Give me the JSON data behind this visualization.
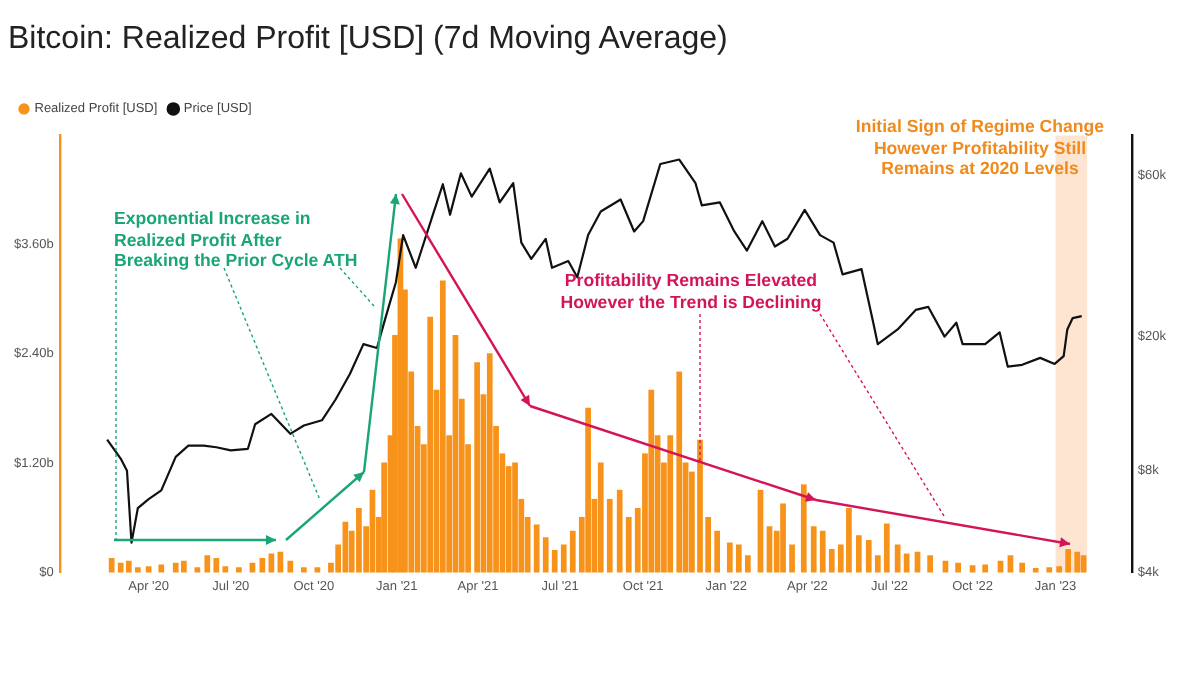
{
  "chart_data": {
    "type": "bar",
    "title": "Bitcoin: Realized Profit [USD] (7d Moving Average)",
    "series": [
      {
        "name": "Realized Profit [USD]",
        "color": "#f7931a",
        "x": [
          "2020-02-20",
          "2020-03-01",
          "2020-03-10",
          "2020-03-20",
          "2020-04-01",
          "2020-04-15",
          "2020-05-01",
          "2020-05-10",
          "2020-05-25",
          "2020-06-05",
          "2020-06-15",
          "2020-06-25",
          "2020-07-10",
          "2020-07-25",
          "2020-08-05",
          "2020-08-15",
          "2020-08-25",
          "2020-09-05",
          "2020-09-20",
          "2020-10-05",
          "2020-10-20",
          "2020-10-28",
          "2020-11-05",
          "2020-11-12",
          "2020-11-20",
          "2020-11-28",
          "2020-12-05",
          "2020-12-12",
          "2020-12-18",
          "2020-12-25",
          "2020-12-30",
          "2021-01-05",
          "2021-01-10",
          "2021-01-17",
          "2021-01-24",
          "2021-01-31",
          "2021-02-07",
          "2021-02-14",
          "2021-02-21",
          "2021-02-28",
          "2021-03-07",
          "2021-03-14",
          "2021-03-21",
          "2021-03-31",
          "2021-04-07",
          "2021-04-14",
          "2021-04-21",
          "2021-04-28",
          "2021-05-05",
          "2021-05-12",
          "2021-05-19",
          "2021-05-26",
          "2021-06-05",
          "2021-06-15",
          "2021-06-25",
          "2021-07-05",
          "2021-07-15",
          "2021-07-25",
          "2021-08-01",
          "2021-08-08",
          "2021-08-15",
          "2021-08-25",
          "2021-09-05",
          "2021-09-15",
          "2021-09-25",
          "2021-10-03",
          "2021-10-10",
          "2021-10-17",
          "2021-10-24",
          "2021-10-31",
          "2021-11-10",
          "2021-11-17",
          "2021-11-24",
          "2021-12-03",
          "2021-12-12",
          "2021-12-22",
          "2022-01-05",
          "2022-01-15",
          "2022-01-25",
          "2022-02-08",
          "2022-02-18",
          "2022-02-26",
          "2022-03-05",
          "2022-03-15",
          "2022-03-28",
          "2022-04-08",
          "2022-04-18",
          "2022-04-28",
          "2022-05-08",
          "2022-05-17",
          "2022-05-28",
          "2022-06-08",
          "2022-06-18",
          "2022-06-28",
          "2022-07-10",
          "2022-07-20",
          "2022-08-01",
          "2022-08-15",
          "2022-09-01",
          "2022-09-15",
          "2022-10-01",
          "2022-10-15",
          "2022-11-01",
          "2022-11-12",
          "2022-11-25",
          "2022-12-10",
          "2022-12-25",
          "2023-01-05",
          "2023-01-15",
          "2023-01-25",
          "2023-02-01"
        ],
        "values": [
          0.15,
          0.1,
          0.12,
          0.05,
          0.06,
          0.08,
          0.1,
          0.12,
          0.05,
          0.18,
          0.15,
          0.06,
          0.05,
          0.1,
          0.15,
          0.2,
          0.22,
          0.12,
          0.05,
          0.05,
          0.1,
          0.3,
          0.55,
          0.45,
          0.7,
          0.5,
          0.9,
          0.6,
          1.2,
          1.5,
          2.6,
          3.66,
          3.1,
          2.2,
          1.6,
          1.4,
          2.8,
          2.0,
          3.2,
          1.5,
          2.6,
          1.9,
          1.4,
          2.3,
          1.95,
          2.4,
          1.6,
          1.3,
          1.16,
          1.2,
          0.8,
          0.6,
          0.52,
          0.38,
          0.24,
          0.3,
          0.45,
          0.6,
          1.8,
          0.8,
          1.2,
          0.8,
          0.9,
          0.6,
          0.7,
          1.3,
          2.0,
          1.5,
          1.2,
          1.5,
          2.2,
          1.2,
          1.1,
          1.45,
          0.6,
          0.45,
          0.32,
          0.3,
          0.18,
          0.9,
          0.5,
          0.45,
          0.75,
          0.3,
          0.96,
          0.5,
          0.45,
          0.25,
          0.3,
          0.7,
          0.4,
          0.35,
          0.18,
          0.53,
          0.3,
          0.2,
          0.22,
          0.18,
          0.12,
          0.1,
          0.07,
          0.08,
          0.12,
          0.18,
          0.1,
          0.04,
          0.05,
          0.06,
          0.25,
          0.22,
          0.18
        ]
      },
      {
        "name": "Price [USD]",
        "type": "line",
        "axis": "y2",
        "color": "#111111",
        "x": [
          "2020-02-15",
          "2020-03-01",
          "2020-03-08",
          "2020-03-13",
          "2020-03-20",
          "2020-04-01",
          "2020-04-15",
          "2020-05-01",
          "2020-05-15",
          "2020-06-01",
          "2020-06-15",
          "2020-07-01",
          "2020-07-20",
          "2020-07-28",
          "2020-08-15",
          "2020-09-05",
          "2020-09-20",
          "2020-10-10",
          "2020-10-25",
          "2020-11-10",
          "2020-11-25",
          "2020-12-10",
          "2020-12-20",
          "2020-12-31",
          "2021-01-08",
          "2021-01-22",
          "2021-02-10",
          "2021-02-21",
          "2021-03-01",
          "2021-03-13",
          "2021-03-25",
          "2021-04-14",
          "2021-04-25",
          "2021-05-10",
          "2021-05-19",
          "2021-05-30",
          "2021-06-15",
          "2021-06-22",
          "2021-07-10",
          "2021-07-20",
          "2021-08-01",
          "2021-08-15",
          "2021-09-06",
          "2021-09-21",
          "2021-10-01",
          "2021-10-20",
          "2021-11-10",
          "2021-11-28",
          "2021-12-05",
          "2021-12-25",
          "2022-01-10",
          "2022-01-24",
          "2022-02-10",
          "2022-02-24",
          "2022-03-10",
          "2022-03-29",
          "2022-04-15",
          "2022-04-30",
          "2022-05-10",
          "2022-05-31",
          "2022-06-13",
          "2022-06-18",
          "2022-07-10",
          "2022-07-30",
          "2022-08-13",
          "2022-08-31",
          "2022-09-13",
          "2022-09-20",
          "2022-10-15",
          "2022-10-31",
          "2022-11-09",
          "2022-11-25",
          "2022-12-15",
          "2022-12-31",
          "2023-01-10",
          "2023-01-14",
          "2023-01-20",
          "2023-01-30"
        ],
        "values": [
          9900,
          8700,
          8000,
          4900,
          6200,
          6600,
          7000,
          8800,
          9500,
          9500,
          9400,
          9200,
          9300,
          11000,
          11800,
          10300,
          10900,
          11300,
          13000,
          15500,
          19000,
          18500,
          23000,
          29000,
          40000,
          32000,
          46000,
          56600,
          46000,
          61000,
          52000,
          63000,
          50000,
          57000,
          38000,
          34000,
          39000,
          32000,
          33500,
          30000,
          40000,
          47000,
          51000,
          41000,
          44000,
          65000,
          67000,
          57000,
          49000,
          50000,
          41000,
          36000,
          44000,
          37000,
          39000,
          47500,
          40000,
          38000,
          30600,
          31700,
          22000,
          19000,
          21000,
          24000,
          24500,
          20000,
          22000,
          19000,
          19000,
          20600,
          16300,
          16500,
          17300,
          16600,
          17500,
          21000,
          22700,
          23000
        ]
      }
    ],
    "xlim": [
      "2020-02-12",
      "2023-02-05"
    ],
    "xticks": [
      {
        "value": "2020-04-01",
        "label": "Apr '20"
      },
      {
        "value": "2020-07-01",
        "label": "Jul '20"
      },
      {
        "value": "2020-10-01",
        "label": "Oct '20"
      },
      {
        "value": "2021-01-01",
        "label": "Jan '21"
      },
      {
        "value": "2021-04-01",
        "label": "Apr '21"
      },
      {
        "value": "2021-07-01",
        "label": "Jul '21"
      },
      {
        "value": "2021-10-01",
        "label": "Oct '21"
      },
      {
        "value": "2022-01-01",
        "label": "Jan '22"
      },
      {
        "value": "2022-04-01",
        "label": "Apr '22"
      },
      {
        "value": "2022-07-01",
        "label": "Jul '22"
      },
      {
        "value": "2022-10-01",
        "label": "Oct '22"
      },
      {
        "value": "2023-01-01",
        "label": "Jan '23"
      }
    ],
    "ylim": [
      0,
      4.8
    ],
    "yticks": [
      {
        "value": 0,
        "label": "$0"
      },
      {
        "value": 1.2,
        "label": "$1.20b"
      },
      {
        "value": 2.4,
        "label": "$2.40b"
      },
      {
        "value": 3.6,
        "label": "$3.60b"
      }
    ],
    "y2lim": [
      4000,
      79000
    ],
    "y2ticks": [
      {
        "value": 4000,
        "label": "$4k"
      },
      {
        "value": 8000,
        "label": "$8k"
      },
      {
        "value": 20000,
        "label": "$20k"
      },
      {
        "value": 60000,
        "label": "$60k"
      }
    ],
    "log": "y2",
    "grid": false,
    "legend": "top left",
    "marker": "none",
    "bands": [
      {
        "axis": "x",
        "from": "2023-01-01",
        "to": "2023-02-05",
        "color": "#fde5d2"
      }
    ],
    "annotations": [
      "Exponential Increase in Realized Profit After Breaking the Prior Cycle ATH",
      {
        "text": "Profitability Remains Elevated However the Trend is Declining",
        "x": "2021-12-03",
        "y": 1.2
      },
      "Initial Sign of Regime Change However Profitability Still Remains at 2020 Levels"
    ]
  }
}
